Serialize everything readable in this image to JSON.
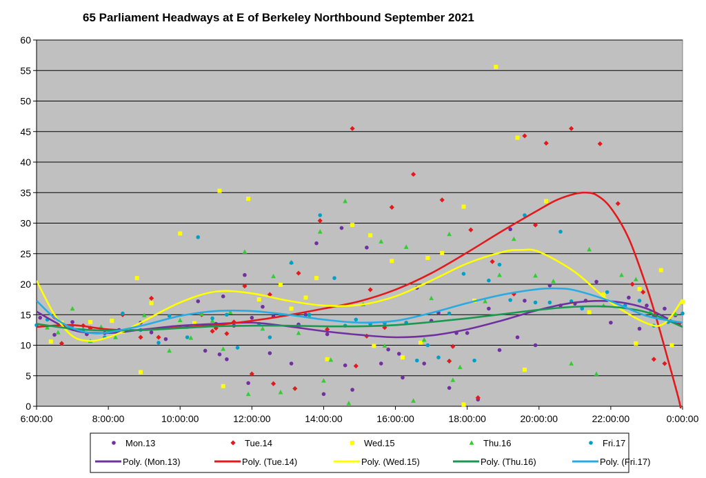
{
  "chart_data": {
    "type": "scatter",
    "title": "65 Parliament Headways at E of Berkeley Northbound September 2021",
    "xlabel": "",
    "ylabel": "",
    "x_unit": "hours",
    "xlim": [
      6,
      24
    ],
    "ylim": [
      0,
      60
    ],
    "x_tick_labels": [
      "6:00:00",
      "8:00:00",
      "10:00:00",
      "12:00:00",
      "14:00:00",
      "16:00:00",
      "18:00:00",
      "20:00:00",
      "22:00:00",
      "0:00:00"
    ],
    "y_tick_labels": [
      "0",
      "5",
      "10",
      "15",
      "20",
      "25",
      "30",
      "35",
      "40",
      "45",
      "50",
      "55",
      "60"
    ],
    "grid": "horizontal",
    "legend_position": "bottom",
    "background": "#c0c0c0",
    "series": [
      {
        "name": "Mon.13",
        "color": "#7030a0",
        "marker": "circle",
        "x": [
          6.1,
          6.5,
          7.0,
          7.4,
          7.9,
          8.3,
          8.9,
          9.2,
          9.6,
          10.2,
          10.5,
          10.7,
          11.0,
          11.1,
          11.2,
          11.3,
          11.5,
          11.8,
          11.9,
          12.0,
          12.3,
          12.5,
          12.6,
          13.1,
          13.3,
          13.5,
          13.8,
          14.0,
          14.1,
          14.5,
          14.6,
          14.8,
          15.2,
          15.6,
          15.8,
          16.1,
          16.2,
          16.6,
          16.8,
          17.0,
          17.2,
          17.5,
          17.7,
          18.0,
          18.3,
          18.6,
          18.9,
          19.2,
          19.4,
          19.6,
          19.9,
          20.3,
          20.6,
          21.0,
          21.3,
          21.6,
          22.0,
          22.5,
          22.8,
          23.0,
          23.2,
          23.5,
          23.8
        ],
        "y": [
          14.5,
          11.7,
          13.8,
          11.8,
          12.0,
          12.5,
          13.7,
          12.1,
          11.0,
          13.0,
          17.2,
          9.1,
          13.5,
          8.5,
          18.0,
          7.7,
          13.2,
          21.5,
          3.8,
          14.5,
          16.3,
          8.7,
          14.7,
          7.0,
          13.4,
          15.0,
          26.7,
          2.0,
          11.8,
          29.2,
          6.7,
          2.7,
          26.0,
          7.0,
          9.3,
          8.6,
          4.7,
          19.4,
          7.0,
          14.0,
          15.3,
          3.0,
          12.0,
          12.0,
          1.1,
          16.0,
          9.2,
          29.0,
          11.3,
          17.3,
          10.0,
          19.8,
          16.5,
          16.8,
          17.3,
          20.4,
          13.7,
          17.8,
          12.7,
          16.5,
          14.8,
          16.0,
          14.9
        ]
      },
      {
        "name": "Tue.14",
        "color": "#e31a1c",
        "marker": "diamond",
        "x": [
          6.5,
          6.7,
          7.3,
          7.5,
          8.4,
          8.9,
          9.2,
          9.4,
          10.6,
          10.9,
          11.0,
          11.3,
          11.5,
          11.8,
          12.0,
          12.5,
          12.6,
          13.2,
          13.3,
          13.9,
          14.1,
          14.8,
          14.9,
          15.2,
          15.3,
          15.7,
          15.9,
          16.5,
          17.3,
          17.5,
          17.6,
          18.1,
          18.3,
          18.7,
          19.3,
          19.6,
          19.9,
          20.2,
          20.9,
          21.7,
          22.2,
          22.6,
          22.9,
          23.2,
          23.5,
          23.9
        ],
        "y": [
          14.6,
          10.3,
          13.2,
          12.8,
          15.0,
          11.3,
          17.7,
          11.3,
          15.0,
          12.3,
          12.8,
          11.9,
          13.8,
          19.7,
          5.3,
          18.3,
          3.7,
          2.9,
          21.8,
          30.4,
          12.6,
          45.5,
          6.6,
          11.5,
          19.1,
          12.9,
          32.6,
          38.0,
          33.8,
          7.4,
          9.8,
          28.9,
          1.4,
          23.7,
          18.4,
          44.3,
          29.7,
          43.1,
          45.5,
          43.0,
          33.2,
          20.0,
          18.7,
          7.7,
          7.0,
          13.5
        ]
      },
      {
        "name": "Wed.15",
        "color": "#ffff00",
        "marker": "square",
        "x": [
          6.4,
          6.7,
          7.1,
          7.5,
          8.1,
          8.4,
          8.8,
          8.9,
          9.2,
          10.0,
          10.4,
          11.1,
          11.2,
          11.9,
          12.2,
          12.8,
          13.1,
          13.5,
          13.8,
          14.1,
          14.8,
          15.3,
          15.4,
          15.9,
          16.2,
          16.7,
          16.9,
          17.3,
          17.9,
          17.9,
          18.2,
          18.8,
          19.4,
          19.6,
          20.2,
          20.9,
          21.4,
          21.8,
          22.7,
          22.8,
          23.4,
          23.7,
          24.0
        ],
        "y": [
          10.6,
          13.7,
          12.5,
          13.8,
          14.0,
          12.2,
          21.0,
          5.6,
          16.9,
          28.3,
          13.6,
          35.3,
          3.3,
          34.0,
          17.5,
          19.9,
          16.0,
          17.8,
          21.0,
          7.7,
          29.7,
          28.0,
          9.9,
          23.8,
          8.0,
          10.4,
          24.3,
          25.1,
          32.7,
          0.3,
          17.3,
          55.6,
          44.0,
          6.0,
          33.6,
          17.0,
          15.4,
          18.3,
          10.3,
          19.2,
          22.3,
          10.0,
          17.1
        ]
      },
      {
        "name": "Thu.16",
        "color": "#33cc33",
        "marker": "triangle",
        "x": [
          6.3,
          6.6,
          7.0,
          7.5,
          7.8,
          8.2,
          9.0,
          9.7,
          10.0,
          10.3,
          10.6,
          10.9,
          11.2,
          11.4,
          11.8,
          11.9,
          12.3,
          12.6,
          12.8,
          13.1,
          13.3,
          13.6,
          13.9,
          14.0,
          14.2,
          14.6,
          14.7,
          15.1,
          15.6,
          15.7,
          16.3,
          16.5,
          16.8,
          17.0,
          17.5,
          17.6,
          17.8,
          18.5,
          18.9,
          19.3,
          19.9,
          20.4,
          20.9,
          21.4,
          21.6,
          21.8,
          22.3,
          22.7,
          23.1,
          23.4,
          23.8
        ],
        "y": [
          12.9,
          12.1,
          16.0,
          10.7,
          13.0,
          11.3,
          14.9,
          9.1,
          14.1,
          11.2,
          15.1,
          14.0,
          9.4,
          15.4,
          25.3,
          2.0,
          12.7,
          21.3,
          2.3,
          23.6,
          12.0,
          14.8,
          28.6,
          4.2,
          7.6,
          33.6,
          0.5,
          16.7,
          27.0,
          9.9,
          26.1,
          0.9,
          10.9,
          17.7,
          28.2,
          4.3,
          6.4,
          17.2,
          21.5,
          27.4,
          21.4,
          20.5,
          7.0,
          25.7,
          5.3,
          16.5,
          21.5,
          20.8,
          15.5,
          14.5,
          15.1
        ]
      },
      {
        "name": "Fri.17",
        "color": "#00a0c6",
        "marker": "circle",
        "x": [
          6.0,
          6.3,
          7.0,
          7.3,
          7.9,
          8.4,
          8.9,
          9.4,
          9.7,
          10.2,
          10.5,
          10.9,
          11.3,
          11.6,
          12.2,
          12.5,
          12.8,
          13.1,
          13.3,
          13.6,
          13.9,
          14.3,
          14.6,
          14.9,
          15.3,
          15.7,
          16.3,
          16.6,
          16.9,
          17.2,
          17.5,
          17.9,
          18.2,
          18.6,
          18.9,
          19.2,
          19.6,
          19.9,
          20.3,
          20.6,
          20.9,
          21.2,
          21.9,
          22.4,
          22.8,
          23.2,
          23.6,
          24.0
        ],
        "y": [
          13.3,
          14.2,
          13.2,
          12.5,
          11.3,
          15.2,
          12.5,
          10.4,
          14.8,
          11.3,
          27.7,
          14.4,
          15.0,
          9.6,
          13.5,
          11.3,
          15.0,
          23.5,
          13.1,
          15.0,
          31.3,
          21.0,
          13.2,
          14.2,
          13.5,
          13.6,
          13.7,
          7.5,
          10.0,
          8.0,
          15.2,
          21.7,
          7.5,
          20.6,
          23.2,
          17.4,
          31.3,
          17.0,
          17.0,
          28.6,
          17.2,
          16.0,
          18.7,
          16.5,
          17.3,
          13.2,
          13.8,
          15.2
        ]
      }
    ],
    "trendlines": [
      {
        "name": "Poly. (Mon.13)",
        "color": "#7030a0",
        "x": [
          6,
          7,
          8,
          9,
          10,
          11,
          12,
          13,
          14,
          15,
          16,
          17,
          18,
          19,
          20,
          21,
          22,
          23,
          24
        ],
        "y": [
          15.5,
          12.5,
          12.0,
          12.6,
          13.2,
          13.5,
          13.7,
          13.1,
          12.3,
          11.7,
          11.3,
          11.6,
          12.6,
          14.1,
          15.8,
          17.0,
          17.2,
          16.0,
          13.0
        ]
      },
      {
        "name": "Poly. (Tue.14)",
        "color": "#e31a1c",
        "x": [
          6,
          7,
          8,
          9,
          10,
          11,
          12,
          13,
          14,
          15,
          16,
          17,
          18,
          19,
          20,
          20.5,
          21,
          21.3,
          21.6,
          22,
          22.5,
          23,
          23.3,
          23.6,
          23.9,
          24
        ],
        "y": [
          13.0,
          13.3,
          12.6,
          12.5,
          12.9,
          13.3,
          14.0,
          14.9,
          16.0,
          17.2,
          19.1,
          21.8,
          25.2,
          28.8,
          32.2,
          33.8,
          34.8,
          35.0,
          34.6,
          32.5,
          27.5,
          19.5,
          13.8,
          7.5,
          1.0,
          -2.0
        ]
      },
      {
        "name": "Poly. (Wed.15)",
        "color": "#ffff00",
        "x": [
          6,
          6.5,
          7,
          7.5,
          8,
          8.5,
          9,
          10,
          11,
          12,
          13,
          14,
          15,
          16,
          17,
          18,
          19,
          19.5,
          20,
          21,
          22,
          23,
          23.5,
          24
        ],
        "y": [
          20.6,
          15.0,
          11.5,
          10.7,
          11.3,
          12.5,
          14.0,
          17.0,
          18.8,
          18.5,
          17.3,
          16.5,
          16.6,
          18.0,
          20.6,
          23.4,
          25.3,
          25.6,
          25.3,
          22.0,
          17.0,
          13.6,
          13.6,
          17.5
        ]
      },
      {
        "name": "Poly. (Thu.16)",
        "color": "#1a9850",
        "x": [
          6,
          7,
          8,
          9,
          10,
          11,
          12,
          13,
          14,
          15,
          16,
          17,
          18,
          19,
          20,
          21,
          22,
          23,
          24
        ],
        "y": [
          13.5,
          12.7,
          12.4,
          12.5,
          12.8,
          13.1,
          13.2,
          13.2,
          13.1,
          13.1,
          13.3,
          13.8,
          14.4,
          15.1,
          15.8,
          16.3,
          16.3,
          15.4,
          13.0
        ]
      },
      {
        "name": "Poly. (Fri.17)",
        "color": "#29abe2",
        "x": [
          6,
          6.5,
          7,
          7.5,
          8,
          9,
          10,
          11,
          12,
          13,
          14,
          15,
          16,
          17,
          18,
          19,
          20,
          20.5,
          21,
          22,
          23,
          24
        ],
        "y": [
          17.3,
          14.5,
          12.8,
          12.0,
          12.1,
          13.3,
          14.8,
          15.6,
          15.6,
          15.0,
          14.2,
          13.7,
          14.0,
          15.3,
          16.9,
          18.3,
          19.2,
          19.3,
          19.0,
          17.2,
          14.8,
          13.7
        ]
      }
    ]
  }
}
